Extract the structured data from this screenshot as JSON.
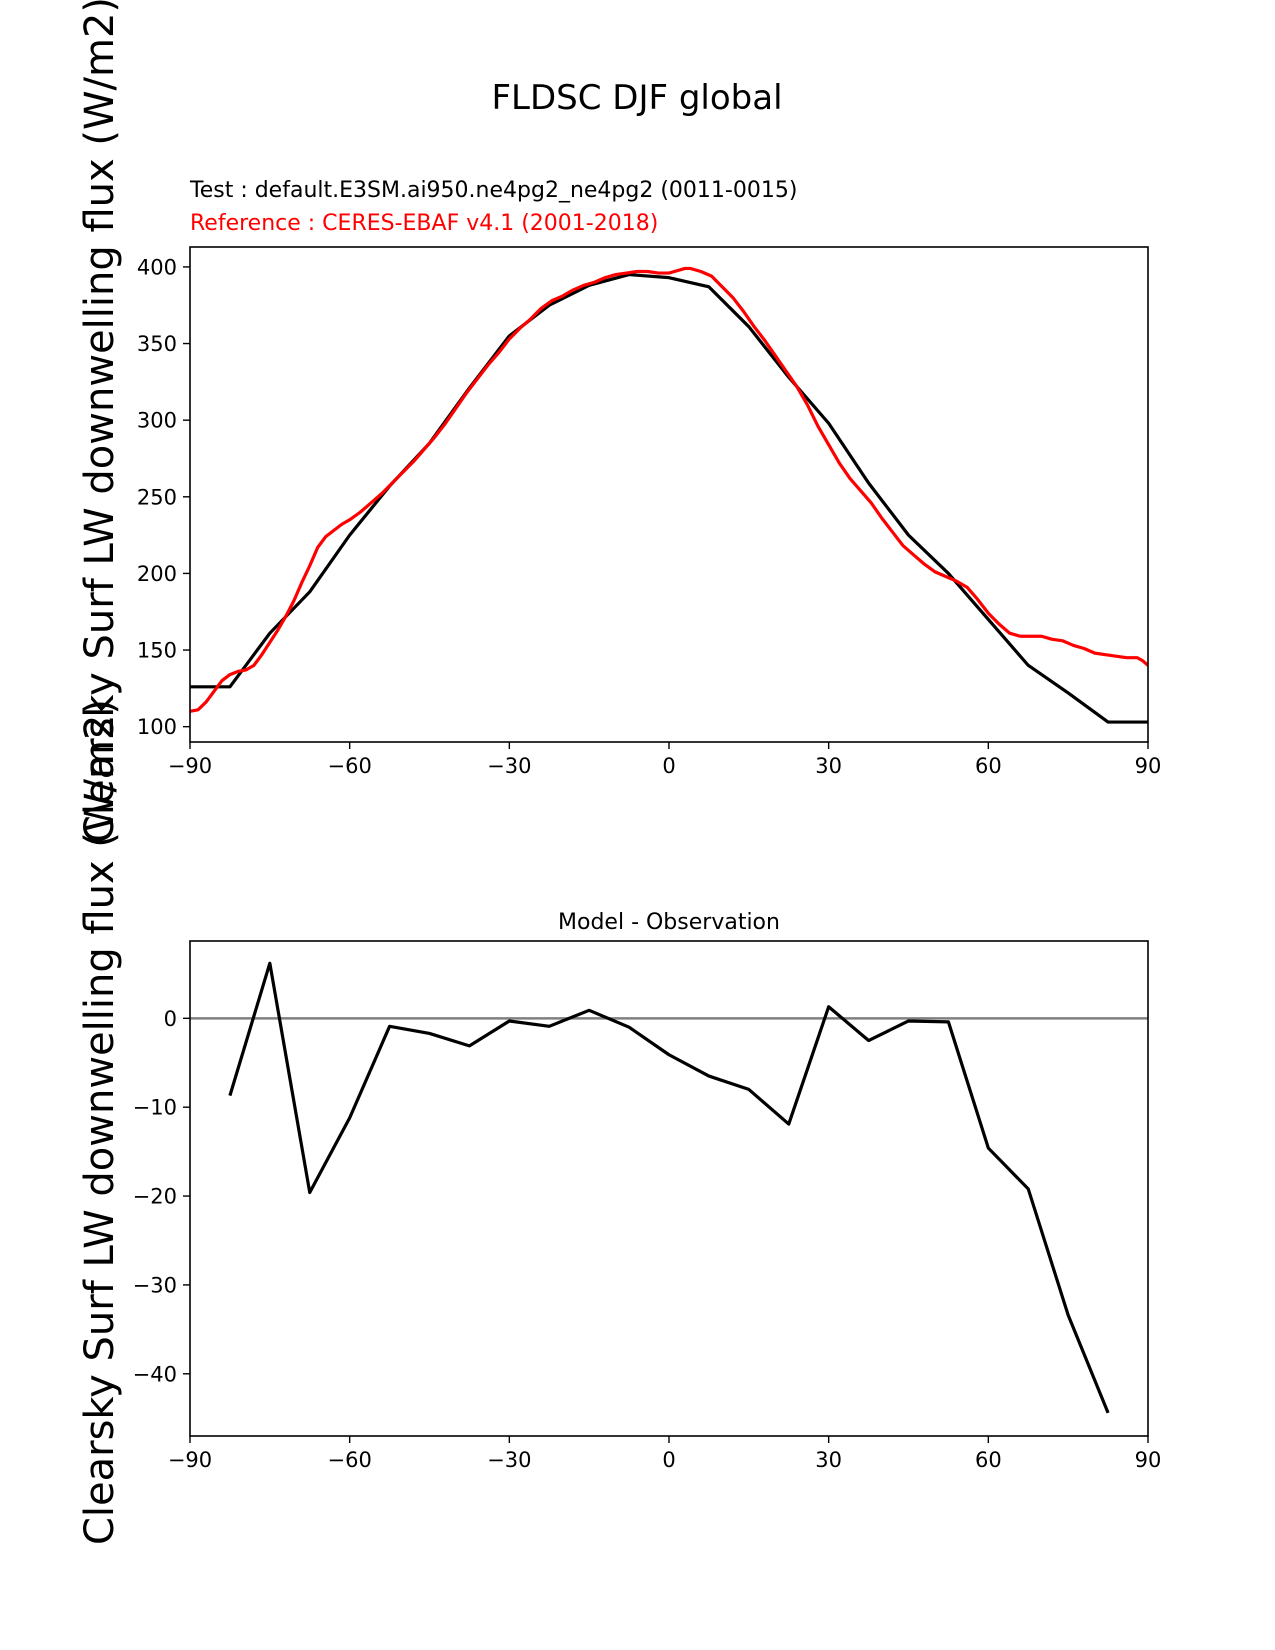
{
  "figure": {
    "title": "FLDSC DJF global",
    "test_label": "Test : default.E3SM.ai950.ne4pg2_ne4pg2 (0011-0015)",
    "reference_label": "Reference : CERES-EBAF v4.1 (2001-2018)",
    "ylabel": "Clearsky Surf LW downwelling flux (W/m2)"
  },
  "colors": {
    "test": "#000000",
    "reference": "#ff0000",
    "zero_line": "#808080"
  },
  "chart_data": [
    {
      "type": "line",
      "title": "",
      "xlabel": "",
      "ylabel": "Clearsky Surf LW downwelling flux (W/m2)",
      "xlim": [
        -90,
        90
      ],
      "ylim": [
        90,
        413
      ],
      "xticks": [
        -90,
        -60,
        -30,
        0,
        30,
        60,
        90
      ],
      "yticks": [
        100,
        150,
        200,
        250,
        300,
        350,
        400
      ],
      "xtick_labels": [
        "−90",
        "−60",
        "−30",
        "0",
        "30",
        "60",
        "90"
      ],
      "ytick_labels": [
        "100",
        "150",
        "200",
        "250",
        "300",
        "350",
        "400"
      ],
      "series": [
        {
          "name": "Test",
          "color": "#000000",
          "x": [
            -90,
            -82.5,
            -75,
            -67.5,
            -60,
            -52.5,
            -45,
            -37.5,
            -30,
            -22.5,
            -15,
            -7.5,
            0,
            7.5,
            15,
            22.5,
            30,
            37.5,
            45,
            52.5,
            60,
            67.5,
            75,
            82.5,
            90
          ],
          "y": [
            126,
            126,
            161,
            188,
            225,
            257,
            285,
            321,
            355,
            375,
            388,
            395,
            393,
            387,
            361,
            328,
            298,
            259,
            225,
            200,
            170,
            140,
            122,
            103,
            103
          ]
        },
        {
          "name": "Reference",
          "color": "#ff0000",
          "x": [
            -90,
            -88.5,
            -87,
            -85.5,
            -84,
            -82.5,
            -81,
            -79.5,
            -78,
            -76.5,
            -75,
            -73.5,
            -72,
            -70.5,
            -69,
            -67.5,
            -66,
            -64.5,
            -63,
            -61.5,
            -60,
            -58,
            -56,
            -54,
            -52,
            -50,
            -48,
            -46,
            -44,
            -42,
            -40,
            -38,
            -36,
            -34,
            -32,
            -30,
            -28,
            -26,
            -24,
            -22,
            -20,
            -18,
            -16,
            -14,
            -12,
            -10,
            -8,
            -6,
            -4,
            -2,
            0,
            2,
            3,
            4,
            6,
            8,
            10,
            12,
            14,
            16,
            18,
            20,
            22,
            24,
            26,
            28,
            30,
            32,
            34,
            36,
            38,
            40,
            42,
            44,
            46,
            48,
            50,
            52,
            54,
            56,
            58,
            60,
            62,
            64,
            66,
            68,
            70,
            72,
            74,
            76,
            78,
            80,
            82,
            84,
            86,
            88,
            89,
            90
          ],
          "y": [
            110,
            111,
            116,
            123,
            130,
            134,
            136,
            137,
            140,
            147,
            155,
            163,
            172,
            182,
            194,
            205,
            217,
            224,
            228,
            232,
            235,
            240,
            246,
            252,
            259,
            266,
            273,
            281,
            289,
            298,
            308,
            318,
            327,
            336,
            344,
            353,
            360,
            366,
            373,
            378,
            381,
            385,
            388,
            390,
            393,
            395,
            396,
            397,
            397,
            396,
            396,
            398,
            399,
            399,
            397,
            394,
            387,
            380,
            371,
            361,
            352,
            342,
            332,
            322,
            310,
            296,
            284,
            272,
            262,
            254,
            246,
            236,
            227,
            218,
            212,
            206,
            201,
            198,
            195,
            191,
            183,
            174,
            167,
            161,
            159,
            159,
            159,
            157,
            156,
            153,
            151,
            148,
            147,
            146,
            145,
            145,
            143,
            140
          ]
        }
      ]
    },
    {
      "type": "line",
      "title": "Model - Observation",
      "xlabel": "",
      "ylabel": "Clearsky Surf LW downwelling flux (W/m2)",
      "xlim": [
        -90,
        90
      ],
      "ylim": [
        -47,
        8.7
      ],
      "xticks": [
        -90,
        -60,
        -30,
        0,
        30,
        60,
        90
      ],
      "yticks": [
        -40,
        -30,
        -20,
        -10,
        0
      ],
      "xtick_labels": [
        "−90",
        "−60",
        "−30",
        "0",
        "30",
        "60",
        "90"
      ],
      "ytick_labels": [
        "−40",
        "−30",
        "−20",
        "−10",
        "0"
      ],
      "zero_line": 0,
      "series": [
        {
          "name": "Model - Observation",
          "color": "#000000",
          "x": [
            -82.5,
            -75,
            -67.5,
            -60,
            -52.5,
            -45,
            -37.5,
            -30,
            -22.5,
            -15,
            -7.5,
            0,
            7.5,
            15,
            22.5,
            30,
            37.5,
            45,
            52.5,
            60,
            67.5,
            75,
            82.5
          ],
          "y": [
            -8.7,
            6.2,
            -19.6,
            -11.2,
            -0.9,
            -1.7,
            -3.1,
            -0.3,
            -0.9,
            0.9,
            -1.0,
            -4.1,
            -6.5,
            -8.0,
            -11.9,
            1.3,
            -2.5,
            -0.3,
            -0.4,
            -14.6,
            -19.2,
            -33.4,
            -44.4
          ]
        }
      ]
    }
  ]
}
